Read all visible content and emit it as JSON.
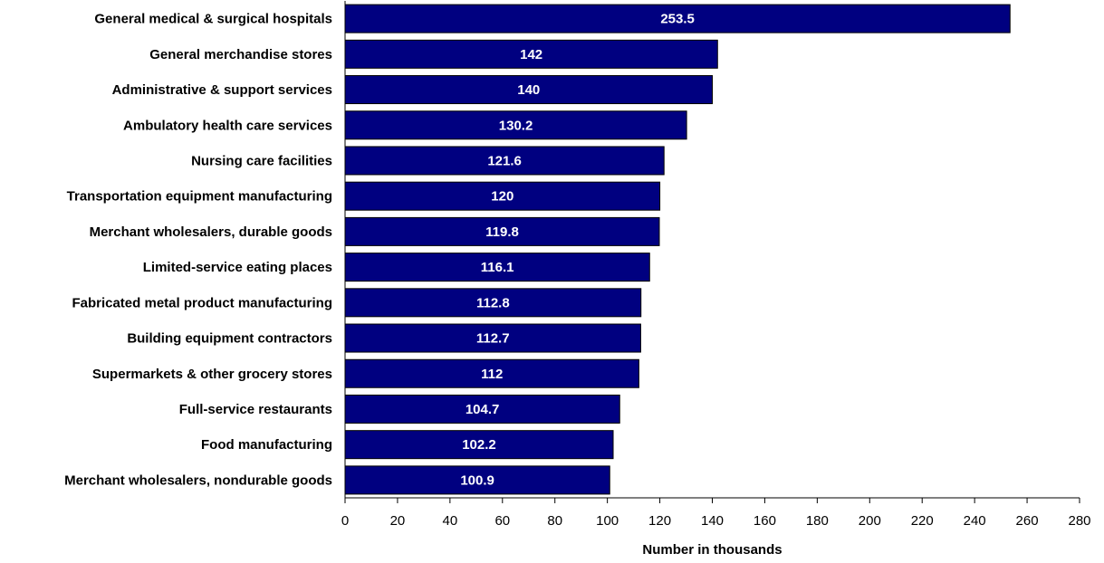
{
  "chart_data": {
    "type": "bar",
    "orientation": "horizontal",
    "categories": [
      "General medical & surgical hospitals",
      "General merchandise stores",
      "Administrative & support services",
      "Ambulatory health care services",
      "Nursing care facilities",
      "Transportation equipment manufacturing",
      "Merchant wholesalers, durable goods",
      "Limited-service eating places",
      "Fabricated metal product manufacturing",
      "Building equipment contractors",
      "Supermarkets & other grocery stores",
      "Full-service restaurants",
      "Food manufacturing",
      "Merchant wholesalers, nondurable goods"
    ],
    "values": [
      253.5,
      142,
      140,
      130.2,
      121.6,
      120,
      119.8,
      116.1,
      112.8,
      112.7,
      112,
      104.7,
      102.2,
      100.9
    ],
    "data_labels": [
      "253.5",
      "142",
      "140",
      "130.2",
      "121.6",
      "120",
      "119.8",
      "116.1",
      "112.8",
      "112.7",
      "112",
      "104.7",
      "102.2",
      "100.9"
    ],
    "xlabel": "Number in thousands",
    "ylabel": "",
    "xlim": [
      0,
      280
    ],
    "xticks": [
      0,
      20,
      40,
      60,
      80,
      100,
      120,
      140,
      160,
      180,
      200,
      220,
      240,
      260,
      280
    ],
    "grid": false,
    "legend": "none",
    "bar_color": "#000080",
    "label_color": "#ffffff"
  }
}
